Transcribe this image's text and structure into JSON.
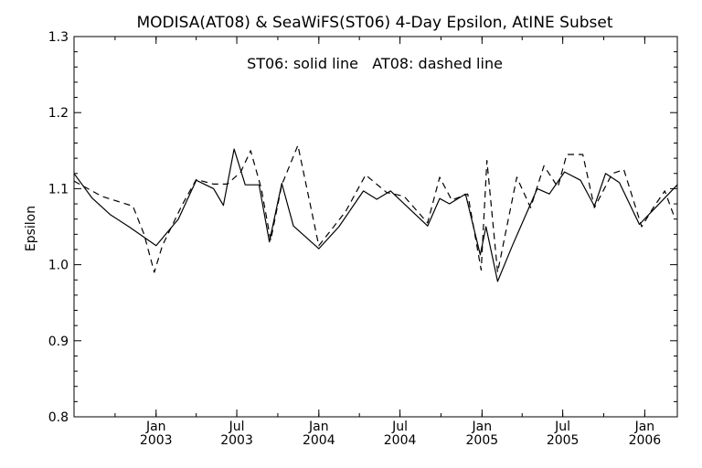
{
  "chart_data": {
    "type": "line",
    "title": "MODISA(AT08) & SeaWiFS(ST06) 4-Day Epsilon, AtINE Subset",
    "annotation": "ST06: solid line   AT08: dashed line",
    "xlabel": "",
    "ylabel": "Epsilon",
    "xlim": [
      "2002-07-01",
      "2006-03-15"
    ],
    "ylim": [
      0.8,
      1.3
    ],
    "yticks": [
      "0.8",
      "0.9",
      "1.0",
      "1.1",
      "1.2",
      "1.3"
    ],
    "xticks": [
      {
        "date": "2003-01-01",
        "label1": "Jan",
        "label2": "2003"
      },
      {
        "date": "2003-07-01",
        "label1": "Jul",
        "label2": "2003"
      },
      {
        "date": "2004-01-01",
        "label1": "Jan",
        "label2": "2004"
      },
      {
        "date": "2004-07-01",
        "label1": "Jul",
        "label2": "2004"
      },
      {
        "date": "2005-01-01",
        "label1": "Jan",
        "label2": "2005"
      },
      {
        "date": "2005-07-01",
        "label1": "Jul",
        "label2": "2005"
      },
      {
        "date": "2006-01-01",
        "label1": "Jan",
        "label2": "2006"
      }
    ],
    "grid": false,
    "legend": "none",
    "series": [
      {
        "name": "ST06",
        "style": "solid",
        "points": [
          [
            "2002-07-01",
            1.12
          ],
          [
            "2002-08-10",
            1.088
          ],
          [
            "2002-09-20",
            1.066
          ],
          [
            "2002-11-01",
            1.05
          ],
          [
            "2002-12-08",
            1.035
          ],
          [
            "2003-01-01",
            1.025
          ],
          [
            "2003-02-20",
            1.06
          ],
          [
            "2003-04-01",
            1.111
          ],
          [
            "2003-05-10",
            1.1
          ],
          [
            "2003-06-01",
            1.078
          ],
          [
            "2003-06-25",
            1.152
          ],
          [
            "2003-07-20",
            1.105
          ],
          [
            "2003-08-20",
            1.105
          ],
          [
            "2003-09-12",
            1.03
          ],
          [
            "2003-10-10",
            1.107
          ],
          [
            "2003-11-05",
            1.051
          ],
          [
            "2004-01-01",
            1.021
          ],
          [
            "2004-02-15",
            1.05
          ],
          [
            "2004-04-10",
            1.097
          ],
          [
            "2004-05-10",
            1.086
          ],
          [
            "2004-06-10",
            1.097
          ],
          [
            "2004-09-01",
            1.051
          ],
          [
            "2004-09-28",
            1.087
          ],
          [
            "2004-10-20",
            1.08
          ],
          [
            "2004-11-25",
            1.093
          ],
          [
            "2004-12-28",
            1.013
          ],
          [
            "2005-01-10",
            1.05
          ],
          [
            "2005-02-05",
            0.978
          ],
          [
            "2005-03-10",
            1.025
          ],
          [
            "2005-05-05",
            1.1
          ],
          [
            "2005-06-01",
            1.093
          ],
          [
            "2005-07-05",
            1.122
          ],
          [
            "2005-08-10",
            1.111
          ],
          [
            "2005-09-10",
            1.077
          ],
          [
            "2005-10-05",
            1.12
          ],
          [
            "2005-11-05",
            1.108
          ],
          [
            "2005-12-20",
            1.053
          ],
          [
            "2006-01-25",
            1.075
          ],
          [
            "2006-03-15",
            1.105
          ]
        ]
      },
      {
        "name": "AT08",
        "style": "dashed",
        "points": [
          [
            "2002-07-01",
            1.11
          ],
          [
            "2002-09-01",
            1.09
          ],
          [
            "2002-11-10",
            1.077
          ],
          [
            "2002-12-05",
            1.04
          ],
          [
            "2002-12-28",
            0.99
          ],
          [
            "2003-01-15",
            1.025
          ],
          [
            "2003-02-28",
            1.078
          ],
          [
            "2003-04-01",
            1.112
          ],
          [
            "2003-05-10",
            1.106
          ],
          [
            "2003-06-10",
            1.106
          ],
          [
            "2003-07-10",
            1.122
          ],
          [
            "2003-08-01",
            1.15
          ],
          [
            "2003-08-25",
            1.1
          ],
          [
            "2003-09-15",
            1.032
          ],
          [
            "2003-10-10",
            1.105
          ],
          [
            "2003-11-15",
            1.157
          ],
          [
            "2004-01-01",
            1.025
          ],
          [
            "2004-03-01",
            1.07
          ],
          [
            "2004-04-15",
            1.118
          ],
          [
            "2004-06-01",
            1.095
          ],
          [
            "2004-07-10",
            1.09
          ],
          [
            "2004-09-01",
            1.055
          ],
          [
            "2004-09-28",
            1.115
          ],
          [
            "2004-10-25",
            1.085
          ],
          [
            "2004-11-30",
            1.093
          ],
          [
            "2004-12-30",
            0.993
          ],
          [
            "2005-01-12",
            1.137
          ],
          [
            "2005-02-05",
            0.99
          ],
          [
            "2005-03-20",
            1.115
          ],
          [
            "2005-04-20",
            1.075
          ],
          [
            "2005-05-20",
            1.13
          ],
          [
            "2005-06-20",
            1.102
          ],
          [
            "2005-07-10",
            1.145
          ],
          [
            "2005-08-15",
            1.145
          ],
          [
            "2005-09-10",
            1.075
          ],
          [
            "2005-10-20",
            1.12
          ],
          [
            "2005-11-15",
            1.125
          ],
          [
            "2005-12-25",
            1.05
          ],
          [
            "2006-01-20",
            1.075
          ],
          [
            "2006-02-15",
            1.097
          ],
          [
            "2006-03-10",
            1.06
          ]
        ]
      }
    ]
  }
}
